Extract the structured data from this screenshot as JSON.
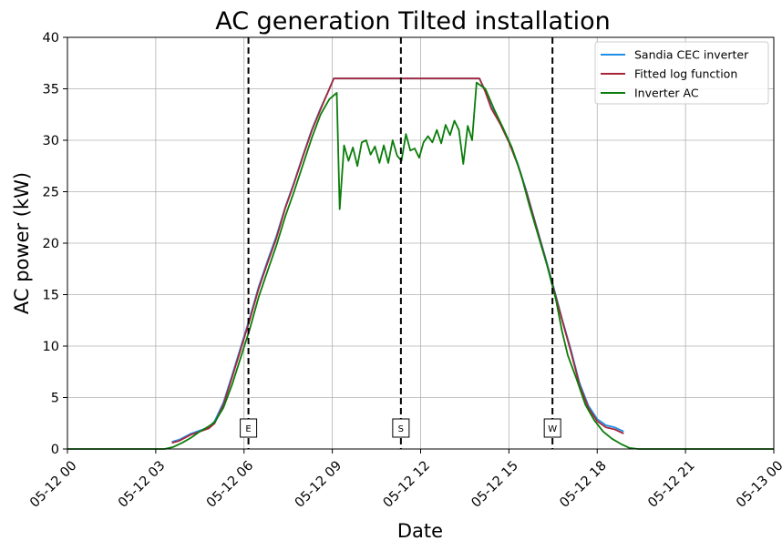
{
  "chart_data": {
    "type": "line",
    "title": "AC generation Tilted installation",
    "xlabel": "Date",
    "ylabel": "AC power (kW)",
    "x_unit": "hours since 05-12 00:00",
    "xlim": [
      0,
      24
    ],
    "ylim": [
      0,
      40
    ],
    "x_ticks": [
      {
        "x": 0,
        "label": "05-12 00"
      },
      {
        "x": 3,
        "label": "05-12 03"
      },
      {
        "x": 6,
        "label": "05-12 06"
      },
      {
        "x": 9,
        "label": "05-12 09"
      },
      {
        "x": 12,
        "label": "05-12 12"
      },
      {
        "x": 15,
        "label": "05-12 15"
      },
      {
        "x": 18,
        "label": "05-12 18"
      },
      {
        "x": 21,
        "label": "05-12 21"
      },
      {
        "x": 24,
        "label": "05-13 00"
      }
    ],
    "y_ticks": [
      0,
      5,
      10,
      15,
      20,
      25,
      30,
      35,
      40
    ],
    "grid": true,
    "legend_position": "top-right",
    "vlines": [
      {
        "x": 6.15,
        "label": "E"
      },
      {
        "x": 11.33,
        "label": "S"
      },
      {
        "x": 16.48,
        "label": "W"
      }
    ],
    "series": [
      {
        "name": "Sandia CEC inverter",
        "color": "#1f8fe6",
        "x": [
          3.55,
          3.8,
          4.0,
          4.2,
          4.5,
          4.8,
          5.0,
          5.3,
          5.6,
          5.9,
          6.2,
          6.5,
          6.8,
          7.1,
          7.4,
          7.7,
          8.0,
          8.3,
          8.6,
          8.9,
          9.05,
          10.0,
          11.0,
          12.0,
          13.0,
          14.0,
          14.2,
          14.4,
          14.7,
          15.0,
          15.3,
          15.6,
          15.9,
          16.2,
          16.5,
          16.8,
          17.1,
          17.4,
          17.7,
          18.0,
          18.3,
          18.6,
          18.9
        ],
        "y": [
          0.7,
          0.9,
          1.2,
          1.5,
          1.8,
          2.1,
          2.7,
          4.5,
          7.2,
          10.0,
          12.8,
          15.8,
          18.3,
          20.7,
          23.5,
          25.9,
          28.5,
          31.0,
          33.1,
          35.0,
          36.0,
          36.0,
          36.0,
          36.0,
          36.0,
          36.0,
          34.8,
          33.2,
          31.7,
          29.9,
          27.7,
          25.0,
          22.0,
          19.0,
          15.9,
          12.7,
          9.7,
          6.4,
          4.2,
          2.9,
          2.3,
          2.1,
          1.7
        ]
      },
      {
        "name": "Fitted log function",
        "color": "#a8263a",
        "x": [
          3.55,
          3.8,
          4.0,
          4.2,
          4.5,
          4.8,
          5.0,
          5.3,
          5.6,
          5.9,
          6.2,
          6.5,
          6.8,
          7.1,
          7.4,
          7.7,
          8.0,
          8.3,
          8.6,
          8.9,
          9.05,
          10.0,
          11.0,
          12.0,
          13.0,
          14.0,
          14.2,
          14.4,
          14.7,
          15.0,
          15.3,
          15.6,
          15.9,
          16.2,
          16.5,
          16.8,
          17.1,
          17.4,
          17.7,
          18.0,
          18.3,
          18.6,
          18.9
        ],
        "y": [
          0.6,
          0.8,
          1.1,
          1.4,
          1.7,
          2.0,
          2.5,
          4.3,
          7.0,
          9.8,
          12.6,
          15.6,
          18.1,
          20.5,
          23.4,
          25.8,
          28.4,
          30.9,
          33.0,
          35.0,
          36.0,
          36.0,
          36.0,
          36.0,
          36.0,
          36.0,
          34.7,
          33.1,
          31.6,
          29.8,
          27.6,
          24.9,
          21.9,
          18.9,
          15.8,
          12.6,
          9.5,
          6.2,
          4.0,
          2.7,
          2.1,
          1.9,
          1.5
        ]
      },
      {
        "name": "Inverter AC",
        "color": "#0a7d0a",
        "x": [
          0,
          3.0,
          3.3,
          3.6,
          3.9,
          4.2,
          4.5,
          4.8,
          5.0,
          5.3,
          5.6,
          5.9,
          6.2,
          6.5,
          6.8,
          7.1,
          7.4,
          7.7,
          8.0,
          8.3,
          8.6,
          8.9,
          9.15,
          9.25,
          9.4,
          9.55,
          9.7,
          9.85,
          10.0,
          10.15,
          10.3,
          10.45,
          10.6,
          10.75,
          10.9,
          11.05,
          11.2,
          11.35,
          11.5,
          11.65,
          11.8,
          11.95,
          12.1,
          12.25,
          12.4,
          12.55,
          12.7,
          12.85,
          13.0,
          13.15,
          13.3,
          13.45,
          13.6,
          13.75,
          13.9,
          14.05,
          14.2,
          14.35,
          14.5,
          14.8,
          15.1,
          15.4,
          15.7,
          16.0,
          16.3,
          16.6,
          16.8,
          17.0,
          17.3,
          17.6,
          17.9,
          18.2,
          18.5,
          18.8,
          19.1,
          19.4,
          20.0,
          24.0
        ],
        "y": [
          0.0,
          0.0,
          0.0,
          0.2,
          0.6,
          1.1,
          1.7,
          2.2,
          2.6,
          4.0,
          6.3,
          9.0,
          11.7,
          14.8,
          17.3,
          19.8,
          22.6,
          25.0,
          27.6,
          30.2,
          32.5,
          34.0,
          34.6,
          23.3,
          29.5,
          28.0,
          29.3,
          27.5,
          29.8,
          30.0,
          28.6,
          29.4,
          27.8,
          29.5,
          27.8,
          30.0,
          28.5,
          28.0,
          30.6,
          29.0,
          29.2,
          28.3,
          29.8,
          30.4,
          29.8,
          31.0,
          29.7,
          31.5,
          30.5,
          31.9,
          31.0,
          27.7,
          31.4,
          30.0,
          35.6,
          35.3,
          35.0,
          34.0,
          33.0,
          31.2,
          29.3,
          26.8,
          23.6,
          20.7,
          17.8,
          14.5,
          11.5,
          9.1,
          6.8,
          4.3,
          2.8,
          1.7,
          1.0,
          0.5,
          0.1,
          0.0,
          0.0,
          0.0
        ]
      }
    ]
  }
}
